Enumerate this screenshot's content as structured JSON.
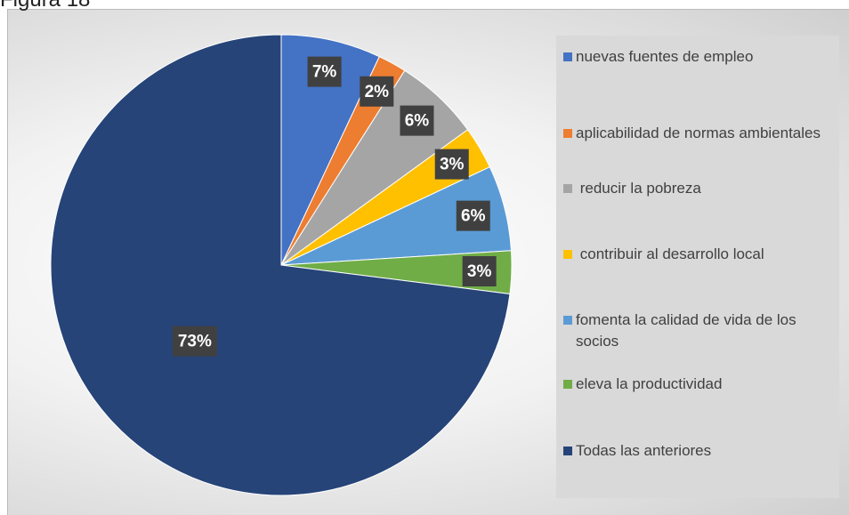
{
  "chart_data": {
    "type": "pie",
    "title": "Figura 18",
    "categories": [
      "nuevas fuentes de empleo",
      "aplicabilidad de normas ambientales",
      " reducir la pobreza",
      " contribuir al desarrollo local",
      "fomenta la calidad de vida de los socios",
      "eleva la productividad",
      "Todas las anteriores"
    ],
    "values": [
      7,
      2,
      6,
      3,
      6,
      3,
      73
    ],
    "value_labels": [
      "7%",
      "2%",
      "6%",
      "3%",
      "6%",
      "3%",
      "73%"
    ],
    "colors": [
      "#4472c4",
      "#ed7d31",
      "#a5a5a5",
      "#ffc000",
      "#5b9bd5",
      "#70ad47",
      "#264478"
    ],
    "legend": "right"
  }
}
